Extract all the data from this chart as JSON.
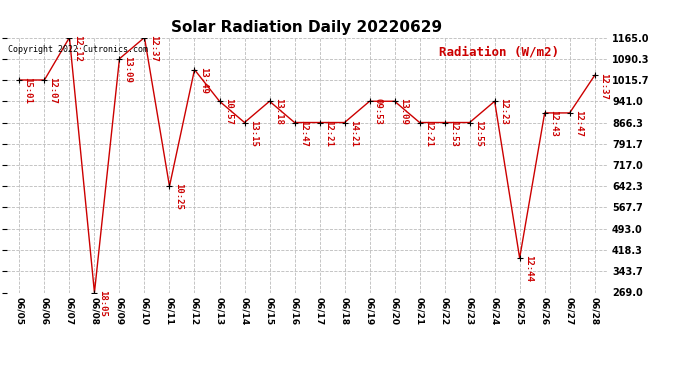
{
  "title": "Solar Radiation Daily 20220629",
  "radiation_label": "Radiation (W/m2)",
  "copyright": "Copyright 2022 Cutronics.com",
  "dates": [
    "06/05",
    "06/06",
    "06/07",
    "06/08",
    "06/09",
    "06/10",
    "06/11",
    "06/12",
    "06/13",
    "06/14",
    "06/15",
    "06/16",
    "06/17",
    "06/18",
    "06/19",
    "06/20",
    "06/21",
    "06/22",
    "06/23",
    "06/24",
    "06/25",
    "06/26",
    "06/27",
    "06/28"
  ],
  "values": [
    1015.7,
    1015.7,
    1165.0,
    269.0,
    1090.3,
    1165.0,
    642.3,
    1052.0,
    941.0,
    866.3,
    941.0,
    866.3,
    866.3,
    866.3,
    941.0,
    941.0,
    866.3,
    866.3,
    866.3,
    941.0,
    390.0,
    900.0,
    900.0,
    1032.0
  ],
  "labels": [
    "15:01",
    "12:07",
    "12:12",
    "18:05",
    "13:09",
    "12:37",
    "10:25",
    "13:49",
    "10:57",
    "13:15",
    "13:18",
    "12:47",
    "12:21",
    "14:21",
    "09:53",
    "13:09",
    "12:21",
    "12:53",
    "12:55",
    "12:23",
    "12:44",
    "12:43",
    "12:47",
    "12:37"
  ],
  "ylim_min": 269.0,
  "ylim_max": 1165.0,
  "yticks": [
    269.0,
    343.7,
    418.3,
    493.0,
    567.7,
    642.3,
    717.0,
    791.7,
    866.3,
    941.0,
    1015.7,
    1090.3,
    1165.0
  ],
  "line_color": "#cc0000",
  "marker_color": "#000000",
  "label_color": "#cc0000",
  "grid_color": "#bbbbbb",
  "bg_color": "#ffffff",
  "title_fontsize": 11,
  "point_label_fontsize": 6.5,
  "ytick_fontsize": 7,
  "xtick_fontsize": 6.5,
  "copyright_fontsize": 6,
  "radiation_label_fontsize": 9
}
